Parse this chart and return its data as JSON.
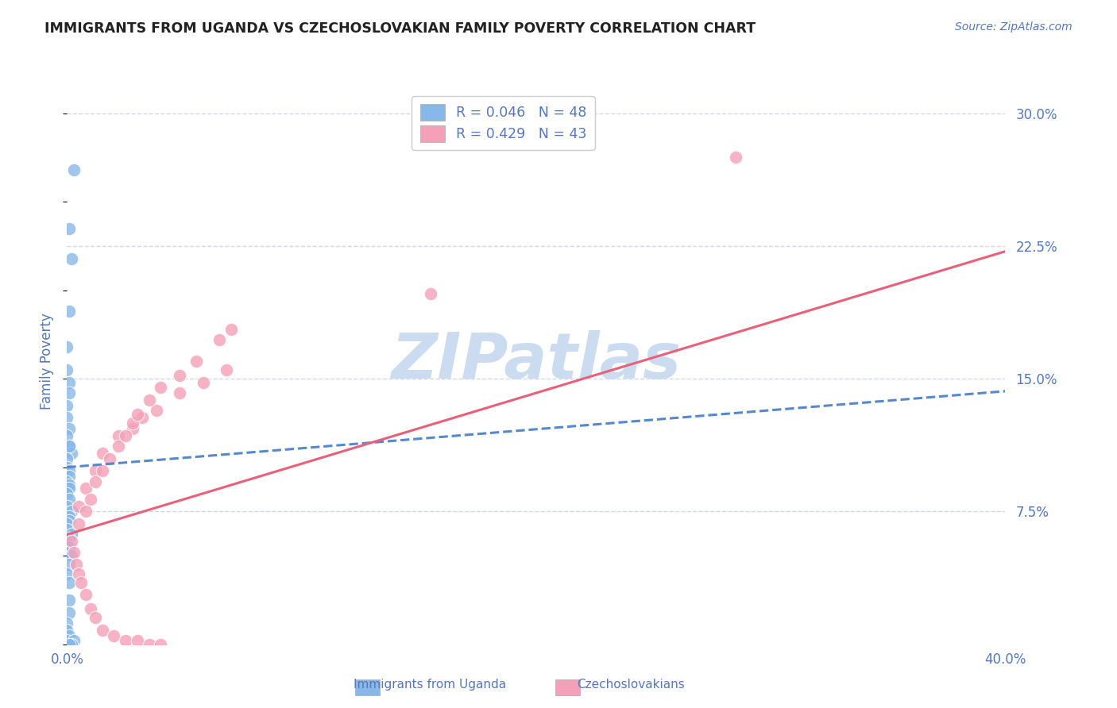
{
  "title": "IMMIGRANTS FROM UGANDA VS CZECHOSLOVAKIAN FAMILY POVERTY CORRELATION CHART",
  "source_text": "Source: ZipAtlas.com",
  "ylabel": "Family Poverty",
  "xlim": [
    0.0,
    0.4
  ],
  "ylim": [
    0.0,
    0.32
  ],
  "ytick_labels": [
    "7.5%",
    "15.0%",
    "22.5%",
    "30.0%"
  ],
  "ytick_values": [
    0.075,
    0.15,
    0.225,
    0.3
  ],
  "legend_entry1": "R = 0.046   N = 48",
  "legend_entry2": "R = 0.429   N = 43",
  "legend_label1": "Immigrants from Uganda",
  "legend_label2": "Czechoslovakians",
  "watermark": "ZIPatlas",
  "watermark_color": "#ccdcf0",
  "background_color": "#ffffff",
  "grid_color": "#d0d8ec",
  "tick_label_color": "#5577bb",
  "title_color": "#222222",
  "scatter_blue_color": "#88b8e8",
  "scatter_pink_color": "#f4a0b8",
  "line_blue_color": "#5588cc",
  "line_pink_color": "#e8607a",
  "blue_scatter_x": [
    0.003,
    0.001,
    0.002,
    0.001,
    0.0,
    0.0,
    0.001,
    0.001,
    0.0,
    0.0,
    0.001,
    0.0,
    0.001,
    0.002,
    0.001,
    0.0,
    0.0,
    0.001,
    0.001,
    0.0,
    0.001,
    0.001,
    0.0,
    0.001,
    0.0,
    0.002,
    0.001,
    0.001,
    0.0,
    0.0,
    0.002,
    0.001,
    0.0,
    0.001,
    0.0,
    0.002,
    0.001,
    0.0,
    0.001,
    0.001,
    0.001,
    0.0,
    0.0,
    0.001,
    0.0,
    0.003,
    0.002,
    0.001
  ],
  "blue_scatter_y": [
    0.268,
    0.235,
    0.218,
    0.188,
    0.168,
    0.155,
    0.148,
    0.142,
    0.135,
    0.128,
    0.122,
    0.118,
    0.112,
    0.108,
    0.112,
    0.105,
    0.1,
    0.098,
    0.095,
    0.092,
    0.09,
    0.088,
    0.085,
    0.082,
    0.078,
    0.075,
    0.072,
    0.07,
    0.068,
    0.065,
    0.062,
    0.06,
    0.058,
    0.055,
    0.052,
    0.05,
    0.045,
    0.04,
    0.035,
    0.025,
    0.018,
    0.012,
    0.008,
    0.005,
    0.002,
    0.002,
    0.0,
    0.0
  ],
  "pink_scatter_x": [
    0.005,
    0.008,
    0.012,
    0.015,
    0.022,
    0.028,
    0.032,
    0.038,
    0.048,
    0.058,
    0.068,
    0.155,
    0.285,
    0.005,
    0.008,
    0.01,
    0.012,
    0.015,
    0.018,
    0.022,
    0.025,
    0.028,
    0.03,
    0.035,
    0.04,
    0.048,
    0.055,
    0.065,
    0.07,
    0.002,
    0.003,
    0.004,
    0.005,
    0.006,
    0.008,
    0.01,
    0.012,
    0.015,
    0.02,
    0.025,
    0.03,
    0.035,
    0.04
  ],
  "pink_scatter_y": [
    0.078,
    0.088,
    0.098,
    0.108,
    0.118,
    0.122,
    0.128,
    0.132,
    0.142,
    0.148,
    0.155,
    0.198,
    0.275,
    0.068,
    0.075,
    0.082,
    0.092,
    0.098,
    0.105,
    0.112,
    0.118,
    0.125,
    0.13,
    0.138,
    0.145,
    0.152,
    0.16,
    0.172,
    0.178,
    0.058,
    0.052,
    0.045,
    0.04,
    0.035,
    0.028,
    0.02,
    0.015,
    0.008,
    0.005,
    0.002,
    0.002,
    0.0,
    0.0
  ],
  "blue_line_x": [
    0.0,
    0.4
  ],
  "blue_line_y": [
    0.1,
    0.143
  ],
  "pink_line_x": [
    0.0,
    0.4
  ],
  "pink_line_y": [
    0.062,
    0.222
  ]
}
